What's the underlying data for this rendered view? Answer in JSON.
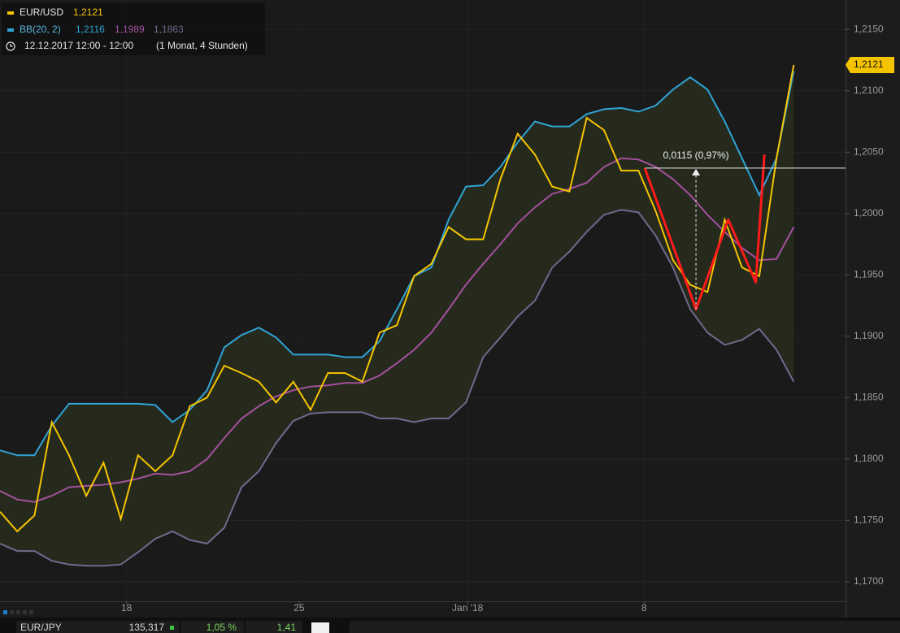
{
  "chart_data": {
    "type": "line",
    "legend": {
      "period": "12.12.2017 12:00 - 12:00",
      "range": "(1 Monat, 4 Stunden)"
    },
    "x": [
      0,
      3,
      6,
      9,
      12,
      15,
      18,
      21,
      24,
      27,
      30,
      33,
      36,
      39,
      42,
      45,
      48,
      51,
      54,
      57,
      60,
      63,
      66,
      69,
      72,
      75,
      78,
      81,
      84,
      87,
      90,
      93,
      96,
      99,
      102,
      105,
      108,
      111,
      114,
      117,
      120,
      123,
      126,
      129,
      132,
      135,
      138
    ],
    "xlim": [
      0,
      147
    ],
    "xticks": [
      {
        "value": 22,
        "label": "18"
      },
      {
        "value": 52,
        "label": "25"
      },
      {
        "value": 81.3,
        "label": "Jan '18"
      },
      {
        "value": 112,
        "label": "8"
      }
    ],
    "ylim": [
      1.1684,
      1.2174
    ],
    "yticks": [
      {
        "value": 1.17,
        "label": "1,1700"
      },
      {
        "value": 1.175,
        "label": "1,1750"
      },
      {
        "value": 1.18,
        "label": "1,1800"
      },
      {
        "value": 1.185,
        "label": "1,1850"
      },
      {
        "value": 1.19,
        "label": "1,1900"
      },
      {
        "value": 1.195,
        "label": "1,1950"
      },
      {
        "value": 1.2,
        "label": "1,2000"
      },
      {
        "value": 1.205,
        "label": "1,2050"
      },
      {
        "value": 1.21,
        "label": "1,2100"
      },
      {
        "value": 1.215,
        "label": "1,2150"
      }
    ],
    "grid": true,
    "series": [
      {
        "name": "EUR/USD",
        "color": "#f5c400",
        "last_label": "1,2121",
        "values": [
          1.1757,
          1.1741,
          1.1754,
          1.183,
          1.1803,
          1.177,
          1.1797,
          1.1751,
          1.1803,
          1.179,
          1.1803,
          1.1843,
          1.185,
          1.1876,
          1.187,
          1.1863,
          1.1846,
          1.1863,
          1.184,
          1.187,
          1.187,
          1.1863,
          1.1903,
          1.1909,
          1.1949,
          1.1959,
          1.1989,
          1.1979,
          1.1979,
          1.2028,
          1.2065,
          1.2048,
          1.2022,
          1.2018,
          1.2078,
          1.2068,
          1.2035,
          1.2035,
          1.2002,
          1.1962,
          1.1942,
          1.1936,
          1.1995,
          1.1956,
          1.1949,
          1.2045,
          1.2121
        ]
      }
    ],
    "bollinger": {
      "name": "BB(20, 2)",
      "band_color": "#252a1d",
      "upper": {
        "color": "#2fa3d4",
        "last_label": "1,2116",
        "values": [
          1.1807,
          1.1803,
          1.1803,
          1.1827,
          1.1845,
          1.1845,
          1.1845,
          1.1845,
          1.1845,
          1.1844,
          1.183,
          1.184,
          1.1856,
          1.1891,
          1.1901,
          1.1907,
          1.1899,
          1.1885,
          1.1885,
          1.1885,
          1.1883,
          1.1883,
          1.1896,
          1.1922,
          1.1949,
          1.1956,
          1.1995,
          1.2022,
          1.2023,
          1.2038,
          1.2058,
          1.2075,
          1.2071,
          1.2071,
          1.2081,
          1.2085,
          1.2086,
          1.2083,
          1.2088,
          1.2101,
          1.2111,
          1.2101,
          1.2075,
          1.2045,
          1.2015,
          1.2045,
          1.2116
        ]
      },
      "middle": {
        "color": "#a4509d",
        "last_label": "1,1989",
        "values": [
          1.1774,
          1.1767,
          1.1765,
          1.177,
          1.1777,
          1.1778,
          1.1779,
          1.1781,
          1.1784,
          1.1788,
          1.1787,
          1.179,
          1.18,
          1.1817,
          1.1833,
          1.1843,
          1.1851,
          1.1856,
          1.1859,
          1.186,
          1.1862,
          1.1862,
          1.1868,
          1.1878,
          1.1889,
          1.1903,
          1.1922,
          1.1942,
          1.1959,
          1.1975,
          1.1992,
          1.2005,
          1.2016,
          1.202,
          1.2025,
          1.2038,
          1.2045,
          1.2044,
          1.2038,
          1.2028,
          1.2015,
          1.1999,
          1.1985,
          1.1972,
          1.1962,
          1.1963,
          1.1989
        ]
      },
      "lower": {
        "color": "#6f6a8c",
        "last_label": "1,1863",
        "values": [
          1.1731,
          1.1725,
          1.1725,
          1.1717,
          1.1714,
          1.1713,
          1.1713,
          1.1714,
          1.1724,
          1.1735,
          1.1741,
          1.1734,
          1.1731,
          1.1744,
          1.1777,
          1.179,
          1.1813,
          1.1831,
          1.1837,
          1.1838,
          1.1838,
          1.1838,
          1.1833,
          1.1833,
          1.183,
          1.1833,
          1.1833,
          1.1846,
          1.1883,
          1.1899,
          1.1916,
          1.1929,
          1.1956,
          1.1969,
          1.1985,
          1.1999,
          1.2003,
          1.2001,
          1.1982,
          1.1956,
          1.1922,
          1.1903,
          1.1893,
          1.1897,
          1.1906,
          1.1889,
          1.1863
        ]
      }
    },
    "pattern": {
      "color": "#ff1a1a",
      "x": [
        112.1,
        121,
        126.6,
        131.4,
        132.9
      ],
      "values": [
        1.2037,
        1.1922,
        1.1995,
        1.1944,
        1.2048
      ]
    },
    "measure": {
      "text": "0,0115 (0,97%)",
      "x": 121,
      "from": 1.1922,
      "level": 1.2037
    },
    "ticker": {
      "symbol": "EUR/JPY",
      "price": "135,317",
      "change": "1,05 %",
      "other": "1,41"
    }
  }
}
